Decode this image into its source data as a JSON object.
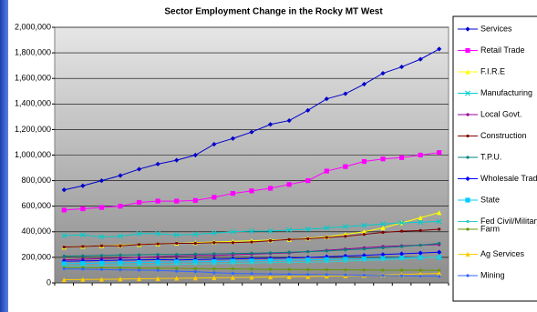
{
  "chart_data": {
    "type": "line",
    "title": "Sector Employment Change in the Rocky MT West",
    "categories": [
      null,
      null,
      null,
      null,
      null,
      null,
      null,
      null,
      null,
      null,
      null,
      null,
      null,
      null,
      null,
      null,
      null,
      null,
      null,
      null,
      null
    ],
    "ylim": [
      0,
      2000000
    ],
    "yticks": [
      0,
      {
        "value": 200000,
        "label": "200,000"
      },
      {
        "value": 400000,
        "label": "400,000"
      },
      {
        "value": 600000,
        "label": "600,000"
      },
      {
        "value": 800000,
        "label": "800,000"
      },
      {
        "value": 1000000,
        "label": "1,000,000"
      },
      {
        "value": 1200000,
        "label": "1,200,000"
      },
      {
        "value": 1400000,
        "label": "1,400,000"
      },
      {
        "value": 1600000,
        "label": "1,600,000"
      },
      {
        "value": 1800000,
        "label": "1,800,000"
      },
      {
        "value": 2000000,
        "label": "2,000,000"
      }
    ],
    "grid": true,
    "legend": "right",
    "series": [
      {
        "name": "Services",
        "color": "#0000cc",
        "values": [
          728000,
          760000,
          800000,
          840000,
          890000,
          930000,
          960000,
          1000000,
          1085000,
          1130000,
          1180000,
          1240000,
          1270000,
          1350000,
          1440000,
          1480000,
          1555000,
          1640000,
          1690000,
          1750000,
          1830000
        ]
      },
      {
        "name": "Retail Trade",
        "color": "#ff00ff",
        "values": [
          570000,
          580000,
          590000,
          600000,
          630000,
          640000,
          640000,
          645000,
          670000,
          700000,
          720000,
          740000,
          770000,
          800000,
          875000,
          910000,
          950000,
          970000,
          980000,
          1000000,
          1020000
        ]
      },
      {
        "name": "F.I.R.E",
        "color": "#ffff00",
        "values": [
          280000,
          285000,
          290000,
          295000,
          300000,
          305000,
          310000,
          315000,
          320000,
          325000,
          330000,
          335000,
          340000,
          350000,
          360000,
          380000,
          400000,
          430000,
          470000,
          510000,
          550000
        ]
      },
      {
        "name": "Manufacturing",
        "color": "#00cccc",
        "values": [
          370000,
          375000,
          360000,
          365000,
          385000,
          385000,
          375000,
          380000,
          390000,
          400000,
          405000,
          405000,
          415000,
          420000,
          430000,
          440000,
          450000,
          460000,
          470000,
          475000,
          480000
        ]
      },
      {
        "name": "Local Govt.",
        "color": "#990099",
        "values": [
          180000,
          185000,
          190000,
          195000,
          200000,
          205000,
          210000,
          215000,
          215000,
          220000,
          225000,
          230000,
          235000,
          245000,
          255000,
          265000,
          275000,
          285000,
          290000,
          295000,
          300000
        ]
      },
      {
        "name": "Construction",
        "color": "#800000",
        "values": [
          280000,
          285000,
          290000,
          290000,
          300000,
          305000,
          310000,
          310000,
          315000,
          315000,
          320000,
          330000,
          340000,
          345000,
          355000,
          365000,
          380000,
          395000,
          405000,
          410000,
          420000
        ]
      },
      {
        "name": "T.P.U.",
        "color": "#008080",
        "values": [
          210000,
          212000,
          215000,
          218000,
          220000,
          222000,
          222000,
          225000,
          228000,
          230000,
          232000,
          235000,
          240000,
          245000,
          250000,
          258000,
          265000,
          275000,
          285000,
          295000,
          310000
        ]
      },
      {
        "name": "Wholesale Trade",
        "color": "#0000ff",
        "values": [
          170000,
          172000,
          175000,
          178000,
          180000,
          182000,
          180000,
          182000,
          185000,
          188000,
          190000,
          192000,
          195000,
          198000,
          205000,
          210000,
          215000,
          222000,
          228000,
          234000,
          240000
        ]
      },
      {
        "name": "State",
        "color": "#00ccff",
        "values": [
          150000,
          152000,
          155000,
          157000,
          160000,
          162000,
          164000,
          165000,
          167000,
          170000,
          172000,
          175000,
          178000,
          180000,
          183000,
          186000,
          189000,
          192000,
          195000,
          198000,
          200000
        ]
      },
      {
        "name": "Fed Civil/Military",
        "color": "#33cccc",
        "values": [
          130000,
          132000,
          135000,
          138000,
          140000,
          142000,
          145000,
          148000,
          150000,
          152000,
          155000,
          158000,
          160000,
          162000,
          165000,
          170000,
          175000,
          180000,
          188000,
          195000,
          200000
        ]
      },
      {
        "name": "Farm",
        "color": "#669900",
        "values": [
          120000,
          120000,
          118000,
          118000,
          116000,
          115000,
          114000,
          112000,
          110000,
          110000,
          108000,
          106000,
          105000,
          104000,
          103000,
          102000,
          101000,
          100000,
          100000,
          99000,
          98000
        ]
      },
      {
        "name": "Ag Services",
        "color": "#ffcc00",
        "values": [
          25000,
          27000,
          28000,
          30000,
          32000,
          34000,
          36000,
          38000,
          40000,
          42000,
          44000,
          46000,
          48000,
          50000,
          53000,
          56000,
          59000,
          62000,
          66000,
          70000,
          75000
        ]
      },
      {
        "name": "Mining",
        "color": "#3366ff",
        "values": [
          110000,
          108000,
          105000,
          102000,
          100000,
          98000,
          92000,
          88000,
          80000,
          75000,
          72000,
          70000,
          68000,
          66000,
          64000,
          62000,
          60000,
          58000,
          56000,
          54000,
          52000
        ]
      }
    ]
  }
}
